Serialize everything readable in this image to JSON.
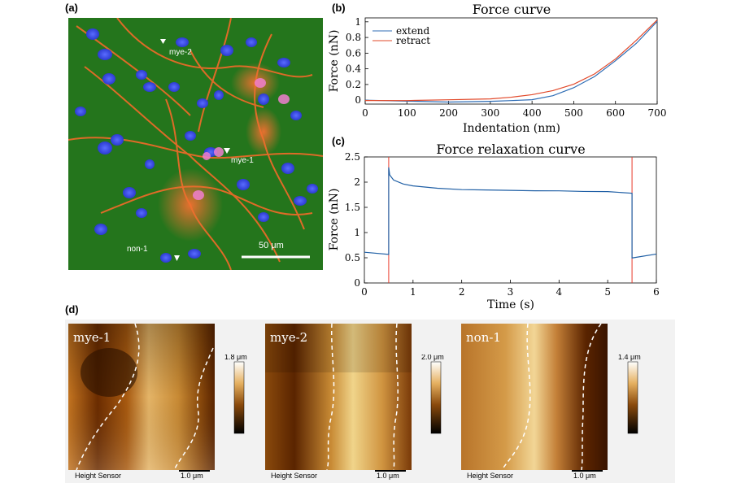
{
  "panel_labels": {
    "a": "(a)",
    "b": "(b)",
    "c": "(c)",
    "d": "(d)"
  },
  "micrograph": {
    "annotations": [
      "mye-2",
      "mye-1",
      "non-1"
    ],
    "scalebar_label": "50 μm"
  },
  "chart_data": [
    {
      "type": "line",
      "title": "Force curve",
      "xlabel": "Indentation (nm)",
      "ylabel": "Force (nN)",
      "xlim": [
        0,
        700
      ],
      "ylim": [
        -0.05,
        1.05
      ],
      "xticks": [
        0,
        100,
        200,
        300,
        400,
        500,
        600,
        700
      ],
      "yticks": [
        0,
        0.2,
        0.4,
        0.6,
        0.8,
        1
      ],
      "legend": "top-left",
      "series": [
        {
          "name": "extend",
          "color": "#2f6db5",
          "x": [
            0,
            100,
            200,
            300,
            350,
            400,
            450,
            500,
            550,
            600,
            650,
            700
          ],
          "y": [
            0.0,
            -0.01,
            -0.02,
            -0.01,
            0.0,
            0.01,
            0.06,
            0.16,
            0.3,
            0.5,
            0.72,
            1.0
          ]
        },
        {
          "name": "retract",
          "color": "#e2492a",
          "x": [
            0,
            100,
            200,
            300,
            350,
            400,
            450,
            500,
            550,
            600,
            650,
            700
          ],
          "y": [
            0.0,
            0.0,
            0.01,
            0.02,
            0.04,
            0.07,
            0.12,
            0.2,
            0.33,
            0.52,
            0.76,
            1.02
          ]
        }
      ]
    },
    {
      "type": "line",
      "title": "Force relaxation curve",
      "xlabel": "Time (s)",
      "ylabel": "Force (nN)",
      "xlim": [
        0,
        6
      ],
      "ylim": [
        0,
        2.5
      ],
      "xticks": [
        0,
        1,
        2,
        3,
        4,
        5,
        6
      ],
      "yticks": [
        0,
        0.5,
        1,
        1.5,
        2,
        2.5
      ],
      "series": [
        {
          "color": "#1f5fa5",
          "x": [
            0,
            0.5,
            0.5,
            0.52,
            0.6,
            0.8,
            1.0,
            1.5,
            2.0,
            2.5,
            3.0,
            3.5,
            4.0,
            4.5,
            5.0,
            5.5,
            5.5,
            6.0
          ],
          "y": [
            0.61,
            0.57,
            2.3,
            2.15,
            2.05,
            1.97,
            1.93,
            1.88,
            1.85,
            1.84,
            1.83,
            1.82,
            1.82,
            1.81,
            1.81,
            1.78,
            0.5,
            0.58
          ]
        }
      ],
      "vlines": {
        "x": [
          0.5,
          5.5
        ],
        "color": "#e83a2a"
      }
    }
  ],
  "afm": {
    "panels": [
      {
        "label": "mye-1",
        "scale_max": "1.8 μm"
      },
      {
        "label": "mye-2",
        "scale_max": "2.0 μm"
      },
      {
        "label": "non-1",
        "scale_max": "1.4 μm"
      }
    ],
    "sensor_label": "Height Sensor",
    "scalebar_label": "1.0 μm"
  }
}
